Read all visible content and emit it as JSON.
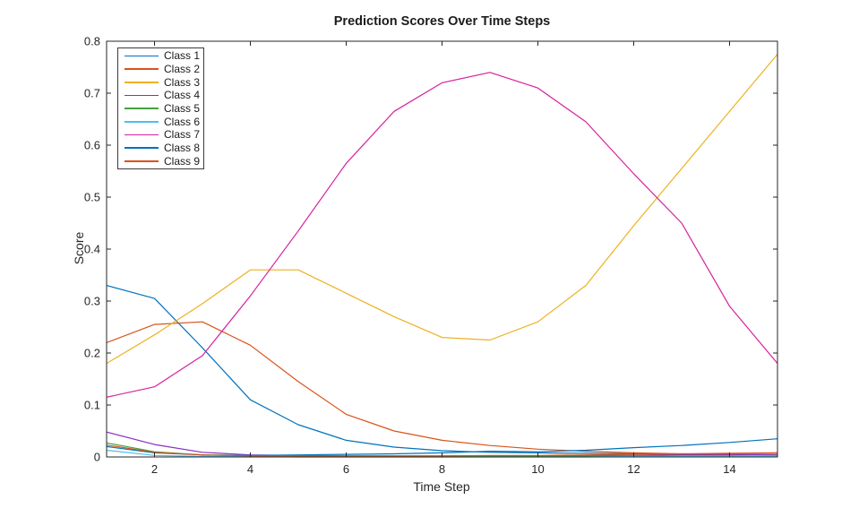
{
  "chart_data": {
    "type": "line",
    "title": "Prediction Scores Over Time Steps",
    "xlabel": "Time Step",
    "ylabel": "Score",
    "xlim": [
      1,
      15
    ],
    "ylim": [
      0,
      0.8
    ],
    "x_ticks": [
      2,
      4,
      6,
      8,
      10,
      12,
      14
    ],
    "x_tick_labels": [
      "2",
      "4",
      "6",
      "8",
      "10",
      "12",
      "14"
    ],
    "y_ticks": [
      0,
      0.1,
      0.2,
      0.3,
      0.4,
      0.5,
      0.6,
      0.7,
      0.8
    ],
    "y_tick_labels": [
      "0",
      "0.1",
      "0.2",
      "0.3",
      "0.4",
      "0.5",
      "0.6",
      "0.7",
      "0.8"
    ],
    "grid": false,
    "legend_position": "top-left-inside",
    "axis_color": "#262626",
    "background": "#ffffff",
    "x": [
      1,
      2,
      3,
      4,
      5,
      6,
      7,
      8,
      9,
      10,
      11,
      12,
      13,
      14,
      15
    ],
    "series": [
      {
        "name": "Class 1",
        "color": "#0072BD",
        "values": [
          0.33,
          0.305,
          0.21,
          0.11,
          0.062,
          0.032,
          0.019,
          0.012,
          0.009,
          0.008,
          0.007,
          0.006,
          0.005,
          0.005,
          0.005
        ]
      },
      {
        "name": "Class 2",
        "color": "#D95319",
        "values": [
          0.22,
          0.255,
          0.26,
          0.215,
          0.145,
          0.082,
          0.05,
          0.032,
          0.022,
          0.015,
          0.011,
          0.008,
          0.006,
          0.005,
          0.004
        ]
      },
      {
        "name": "Class 3",
        "color": "#EDB120",
        "values": [
          0.18,
          0.235,
          0.295,
          0.36,
          0.36,
          0.315,
          0.27,
          0.23,
          0.225,
          0.26,
          0.33,
          0.445,
          0.555,
          0.665,
          0.775
        ]
      },
      {
        "name": "Class 4",
        "color": "#8630BE",
        "values": [
          0.048,
          0.024,
          0.009,
          0.004,
          0.003,
          0.002,
          0.002,
          0.002,
          0.002,
          0.002,
          0.003,
          0.003,
          0.004,
          0.004,
          0.005
        ]
      },
      {
        "name": "Class 5",
        "color": "#45A33C",
        "values": [
          0.027,
          0.01,
          0.004,
          0.002,
          0.002,
          0.001,
          0.001,
          0.001,
          0.001,
          0.001,
          0.001,
          0.001,
          0.002,
          0.002,
          0.002
        ]
      },
      {
        "name": "Class 6",
        "color": "#4DBEEE",
        "values": [
          0.013,
          0.003,
          0.001,
          0.001,
          0.0,
          0.0,
          0.0,
          0.0,
          0.0,
          0.0,
          0.0,
          0.001,
          0.001,
          0.001,
          0.001
        ]
      },
      {
        "name": "Class 7",
        "color": "#D6219C",
        "values": [
          0.115,
          0.135,
          0.195,
          0.31,
          0.435,
          0.565,
          0.665,
          0.72,
          0.74,
          0.71,
          0.645,
          0.545,
          0.45,
          0.29,
          0.18
        ]
      },
      {
        "name": "Class 8",
        "color": "#0072BD",
        "values": [
          0.02,
          0.008,
          0.004,
          0.003,
          0.004,
          0.005,
          0.006,
          0.008,
          0.011,
          0.01,
          0.013,
          0.018,
          0.022,
          0.028,
          0.035
        ]
      },
      {
        "name": "Class 9",
        "color": "#D95319",
        "values": [
          0.023,
          0.009,
          0.004,
          0.002,
          0.002,
          0.002,
          0.002,
          0.002,
          0.003,
          0.003,
          0.004,
          0.005,
          0.006,
          0.007,
          0.008
        ]
      }
    ]
  }
}
